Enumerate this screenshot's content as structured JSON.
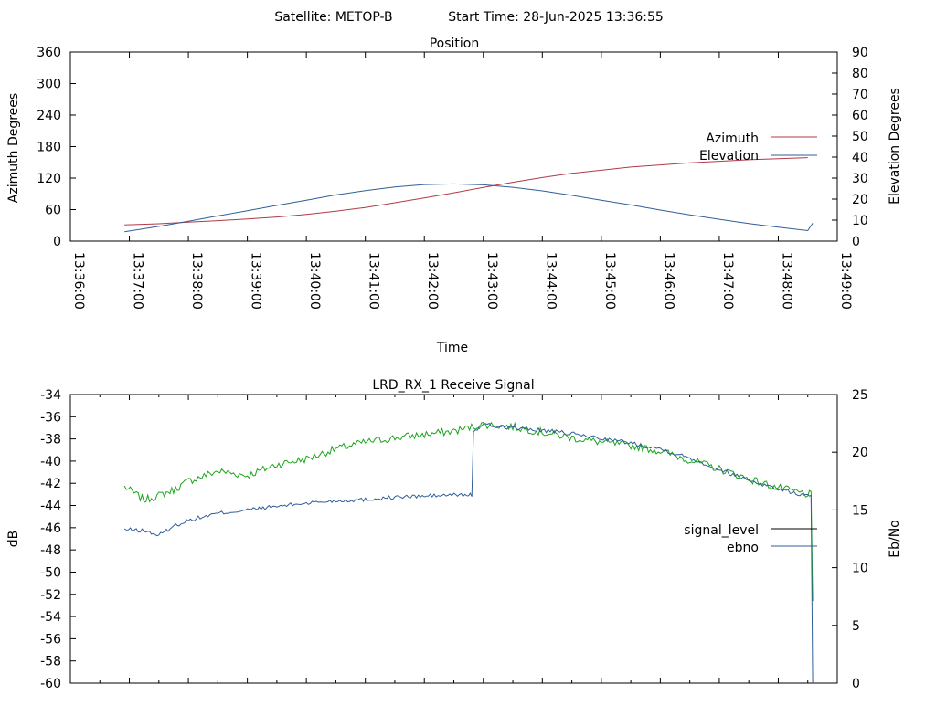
{
  "header": {
    "satellite_label": "Satellite: METOP-B",
    "start_label": "Start Time: 28-Jun-2025 13:36:55"
  },
  "chart_data": [
    {
      "type": "line",
      "title": "Position",
      "xlabel": "Time",
      "ylabel": "Azimuth Degrees",
      "y2label": "Elevation Degrees",
      "xlim": [
        "13:36:00",
        "13:49:00"
      ],
      "ylim": [
        0,
        360
      ],
      "y2lim": [
        0,
        90
      ],
      "x_ticks": [
        "13:36:00",
        "13:37:00",
        "13:38:00",
        "13:39:00",
        "13:40:00",
        "13:41:00",
        "13:42:00",
        "13:43:00",
        "13:44:00",
        "13:45:00",
        "13:46:00",
        "13:47:00",
        "13:48:00",
        "13:49:00"
      ],
      "y_ticks": [
        0,
        60,
        120,
        180,
        240,
        300,
        360
      ],
      "y2_ticks": [
        0,
        10,
        20,
        30,
        40,
        50,
        60,
        70,
        80,
        90
      ],
      "legend_position": "right",
      "grid": false,
      "series": [
        {
          "name": "Azimuth",
          "axis": "y",
          "color": "#b03a48",
          "x": [
            "13:36:55",
            "13:37:30",
            "13:38:00",
            "13:38:30",
            "13:39:00",
            "13:39:30",
            "13:40:00",
            "13:40:30",
            "13:41:00",
            "13:41:30",
            "13:42:00",
            "13:42:30",
            "13:43:00",
            "13:43:30",
            "13:44:00",
            "13:44:30",
            "13:45:00",
            "13:45:30",
            "13:46:00",
            "13:46:30",
            "13:47:00",
            "13:47:30",
            "13:48:00",
            "13:48:30"
          ],
          "values": [
            31,
            33,
            36,
            39,
            42,
            46,
            51,
            57,
            64,
            73,
            82,
            92,
            102,
            112,
            121,
            129,
            135,
            141,
            145,
            149,
            152,
            155,
            157,
            159
          ]
        },
        {
          "name": "Elevation",
          "axis": "y2",
          "color": "#2f5f98",
          "x": [
            "13:36:55",
            "13:37:30",
            "13:38:00",
            "13:38:30",
            "13:39:00",
            "13:39:30",
            "13:40:00",
            "13:40:30",
            "13:41:00",
            "13:41:30",
            "13:42:00",
            "13:42:30",
            "13:43:00",
            "13:43:30",
            "13:44:00",
            "13:44:30",
            "13:45:00",
            "13:45:30",
            "13:46:00",
            "13:46:30",
            "13:47:00",
            "13:47:30",
            "13:48:00",
            "13:48:30",
            "13:48:35"
          ],
          "values": [
            4.5,
            7,
            9.5,
            12,
            14.5,
            17,
            19.5,
            22,
            24,
            25.8,
            26.9,
            27.2,
            26.8,
            25.6,
            23.9,
            21.8,
            19.5,
            17.2,
            14.8,
            12.5,
            10.4,
            8.4,
            6.6,
            5,
            8.5
          ]
        }
      ]
    },
    {
      "type": "line",
      "title": "LRD_RX_1 Receive Signal",
      "xlabel": "",
      "ylabel": "dB",
      "y2label": "Eb/No",
      "xlim": [
        "13:36:00",
        "13:49:00"
      ],
      "ylim": [
        -60,
        -34
      ],
      "y2lim": [
        0,
        25
      ],
      "y_ticks": [
        -34,
        -36,
        -38,
        -40,
        -42,
        -44,
        -46,
        -48,
        -50,
        -52,
        -54,
        -56,
        -58,
        -60
      ],
      "y2_ticks": [
        0,
        5,
        10,
        15,
        20,
        25
      ],
      "legend_position": "right",
      "grid": false,
      "series": [
        {
          "name": "signal_level",
          "axis": "y",
          "color": "#000000",
          "x": [
            "13:36:55",
            "13:37:15",
            "13:37:30",
            "13:37:45",
            "13:38:00",
            "13:38:30",
            "13:39:00",
            "13:39:30",
            "13:40:00",
            "13:40:30",
            "13:41:00",
            "13:41:30",
            "13:42:00",
            "13:42:30",
            "13:42:50",
            "13:43:00",
            "13:43:30",
            "13:44:00",
            "13:44:30",
            "13:45:00",
            "13:45:30",
            "13:46:00",
            "13:46:30",
            "13:47:00",
            "13:47:30",
            "13:48:00",
            "13:48:30",
            "13:48:35"
          ],
          "values": [
            -42.3,
            -43.5,
            -43.1,
            -42.6,
            -41.8,
            -40.9,
            -41.3,
            -40.3,
            -39.8,
            -38.9,
            -38.3,
            -37.9,
            -37.6,
            -37.3,
            -36.9,
            -36.7,
            -36.9,
            -37.4,
            -37.9,
            -38.3,
            -38.6,
            -39.1,
            -39.9,
            -40.7,
            -41.6,
            -42.4,
            -43.0,
            -52.6
          ]
        },
        {
          "name": "ebno",
          "axis": "y2",
          "color": "#2f5f98",
          "x": [
            "13:36:55",
            "13:37:15",
            "13:37:30",
            "13:37:45",
            "13:38:00",
            "13:38:30",
            "13:39:00",
            "13:39:30",
            "13:40:00",
            "13:40:30",
            "13:41:00",
            "13:41:30",
            "13:42:00",
            "13:42:30",
            "13:42:45",
            "13:42:50",
            "13:43:00",
            "13:43:30",
            "13:44:00",
            "13:44:30",
            "13:45:00",
            "13:45:30",
            "13:46:00",
            "13:46:30",
            "13:47:00",
            "13:47:30",
            "13:48:00",
            "13:48:30",
            "13:48:35"
          ],
          "values": [
            13.3,
            13.2,
            12.8,
            13.6,
            14.1,
            14.7,
            15.0,
            15.3,
            15.6,
            15.8,
            15.9,
            16.1,
            16.2,
            16.3,
            16.3,
            21.8,
            22.4,
            22.1,
            21.9,
            21.6,
            21.2,
            20.8,
            20.3,
            19.5,
            18.5,
            17.6,
            16.8,
            16.2,
            0
          ]
        }
      ]
    }
  ]
}
